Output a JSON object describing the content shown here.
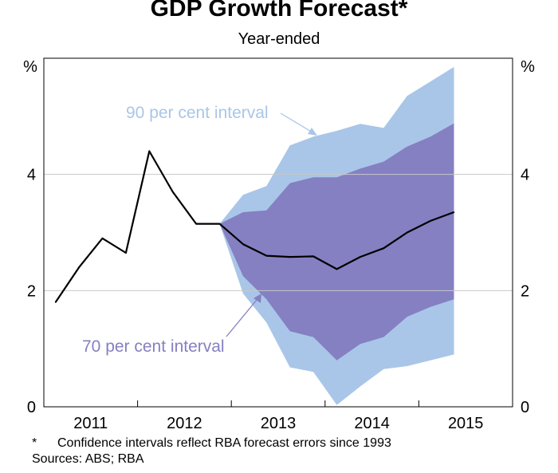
{
  "chart_data": {
    "type": "area",
    "title": "GDP Growth Forecast*",
    "subtitle": "Year-ended",
    "ylabel_left": "%",
    "ylabel_right": "%",
    "ylim": [
      0,
      6
    ],
    "yticks": [
      0,
      2,
      4
    ],
    "xlim": [
      2010.5,
      2015.5
    ],
    "xticks": [
      {
        "label": "2011",
        "x": 2011
      },
      {
        "label": "2012",
        "x": 2012
      },
      {
        "label": "2013",
        "x": 2013
      },
      {
        "label": "2014",
        "x": 2014
      },
      {
        "label": "2015",
        "x": 2015
      }
    ],
    "grid": true,
    "series": [
      {
        "name": "GDP growth",
        "type": "line",
        "color": "#000000",
        "x": [
          2010.625,
          2010.875,
          2011.125,
          2011.375,
          2011.625,
          2011.875,
          2012.125,
          2012.375,
          2012.625,
          2012.875,
          2013.125,
          2013.375,
          2013.625,
          2013.875,
          2014.125,
          2014.375,
          2014.625,
          2014.875
        ],
        "values": [
          1.8,
          2.4,
          2.9,
          2.65,
          4.4,
          3.7,
          3.15,
          3.15,
          2.8,
          2.6,
          2.58,
          2.59,
          2.37,
          2.58,
          2.73,
          3.0,
          3.2,
          3.35
        ]
      },
      {
        "name": "90 per cent interval",
        "type": "band",
        "color": "#a9c6e8",
        "x": [
          2012.375,
          2012.625,
          2012.875,
          2013.125,
          2013.375,
          2013.625,
          2013.875,
          2014.125,
          2014.375,
          2014.625,
          2014.875
        ],
        "lower": [
          3.15,
          1.95,
          1.45,
          0.68,
          0.6,
          0.03,
          0.35,
          0.65,
          0.7,
          0.8,
          0.9
        ],
        "upper": [
          3.15,
          3.65,
          3.8,
          4.5,
          4.65,
          4.75,
          4.87,
          4.8,
          5.35,
          5.6,
          5.85
        ]
      },
      {
        "name": "70 per cent interval",
        "type": "band",
        "color": "#8580c2",
        "x": [
          2012.375,
          2012.625,
          2012.875,
          2013.125,
          2013.375,
          2013.625,
          2013.875,
          2014.125,
          2014.375,
          2014.625,
          2014.875
        ],
        "lower": [
          3.15,
          2.25,
          1.85,
          1.3,
          1.2,
          0.8,
          1.08,
          1.2,
          1.55,
          1.72,
          1.85
        ],
        "upper": [
          3.15,
          3.35,
          3.38,
          3.85,
          3.95,
          3.95,
          4.1,
          4.22,
          4.48,
          4.65,
          4.88
        ]
      }
    ],
    "annotations": [
      {
        "text": "90 per cent interval",
        "color": "#a9c6e8"
      },
      {
        "text": "70 per cent interval",
        "color": "#8580c2"
      }
    ]
  },
  "footnotes": {
    "star_mark": "*",
    "note": "Confidence intervals reflect RBA forecast errors since 1993",
    "sources": "Sources: ABS; RBA"
  }
}
